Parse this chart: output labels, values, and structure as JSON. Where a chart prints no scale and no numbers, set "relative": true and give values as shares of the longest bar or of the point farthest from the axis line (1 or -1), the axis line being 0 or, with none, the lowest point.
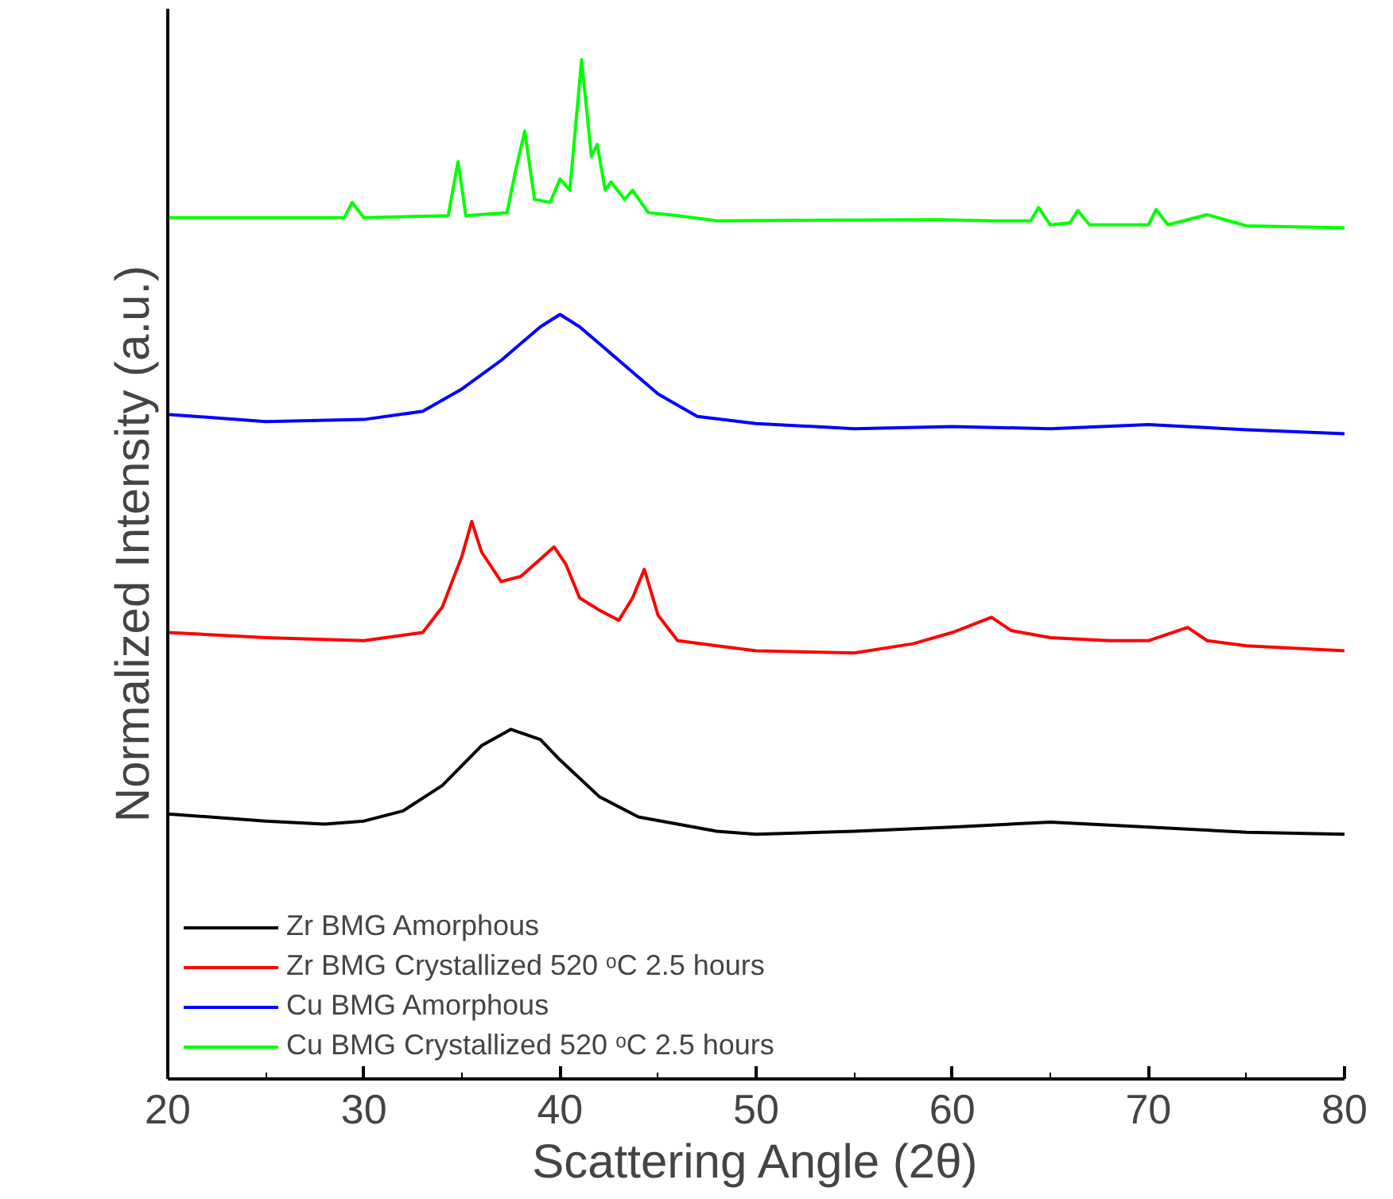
{
  "chart_data": {
    "type": "line",
    "relative": true,
    "xlabel": "Scattering Angle (2θ)",
    "ylabel": "Normalized Intensity (a.u.)",
    "xlim": [
      20,
      80
    ],
    "xticks": [
      20,
      30,
      40,
      50,
      60,
      70,
      80
    ],
    "legend": "bottom left",
    "grid": false,
    "series": [
      {
        "name": "Zr BMG Amorphous",
        "color": "#000000",
        "x": [
          20,
          25,
          28,
          30,
          32,
          34,
          36,
          37.5,
          39,
          40,
          42,
          44,
          46,
          48,
          50,
          55,
          60,
          65,
          70,
          75,
          80
        ],
        "values": [
          0.26,
          0.253,
          0.25,
          0.253,
          0.263,
          0.288,
          0.327,
          0.343,
          0.333,
          0.313,
          0.277,
          0.257,
          0.25,
          0.243,
          0.24,
          0.243,
          0.247,
          0.252,
          0.247,
          0.242,
          0.24
        ]
      },
      {
        "name": "Zr BMG Crystallized 520 ᵒC 2.5 hours",
        "color": "#ff0000",
        "x": [
          20,
          25,
          30,
          33,
          34,
          35,
          35.5,
          36,
          37,
          38,
          39,
          39.7,
          40.3,
          41,
          42,
          43,
          43.7,
          44.3,
          45,
          46,
          48,
          50,
          55,
          58,
          60,
          62,
          63,
          65,
          68,
          70,
          72,
          73,
          75,
          80
        ],
        "values": [
          0.438,
          0.433,
          0.43,
          0.438,
          0.463,
          0.513,
          0.547,
          0.517,
          0.488,
          0.493,
          0.51,
          0.522,
          0.505,
          0.472,
          0.46,
          0.45,
          0.472,
          0.5,
          0.455,
          0.43,
          0.425,
          0.42,
          0.418,
          0.427,
          0.438,
          0.453,
          0.44,
          0.433,
          0.43,
          0.43,
          0.443,
          0.43,
          0.425,
          0.42
        ]
      },
      {
        "name": "Cu BMG Amorphous",
        "color": "#0000ff",
        "x": [
          20,
          25,
          30,
          33,
          35,
          37,
          39,
          40,
          41,
          43,
          45,
          47,
          50,
          55,
          60,
          65,
          70,
          75,
          80
        ],
        "values": [
          0.652,
          0.645,
          0.647,
          0.655,
          0.677,
          0.705,
          0.738,
          0.75,
          0.738,
          0.705,
          0.672,
          0.65,
          0.643,
          0.638,
          0.64,
          0.638,
          0.642,
          0.637,
          0.633
        ]
      },
      {
        "name": "Cu BMG Crystallized 520 ᵒC 2.5 hours",
        "color": "#00ff00",
        "x": [
          20,
          29,
          29.4,
          30,
          34.3,
          34.8,
          35.2,
          37.3,
          37.7,
          38.2,
          38.7,
          39.5,
          40,
          40.5,
          41.1,
          41.6,
          41.9,
          42.3,
          42.6,
          43.3,
          43.7,
          44.5,
          46,
          48,
          59.3,
          62,
          64,
          64.4,
          65,
          66,
          66.4,
          67,
          70,
          70.4,
          71,
          73,
          75,
          80
        ],
        "values": [
          0.845,
          0.845,
          0.86,
          0.845,
          0.847,
          0.9,
          0.847,
          0.85,
          0.888,
          0.93,
          0.863,
          0.86,
          0.883,
          0.872,
          1.0,
          0.905,
          0.917,
          0.872,
          0.88,
          0.863,
          0.872,
          0.85,
          0.847,
          0.842,
          0.843,
          0.842,
          0.842,
          0.855,
          0.838,
          0.84,
          0.852,
          0.838,
          0.838,
          0.853,
          0.838,
          0.848,
          0.837,
          0.835
        ]
      }
    ]
  }
}
